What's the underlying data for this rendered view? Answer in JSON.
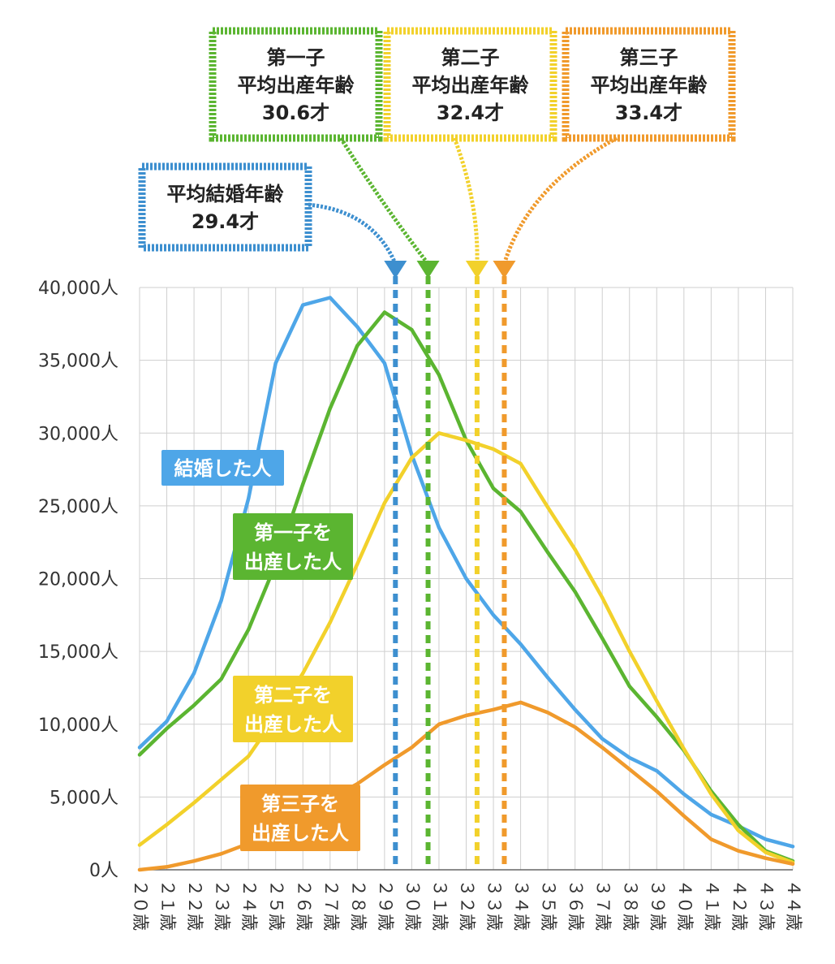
{
  "chart_data": {
    "type": "line",
    "x": [
      20,
      21,
      22,
      23,
      24,
      25,
      26,
      27,
      28,
      29,
      30,
      31,
      32,
      33,
      34,
      35,
      36,
      37,
      38,
      39,
      40,
      41,
      42,
      43,
      44
    ],
    "x_tick_labels": [
      "２０歳",
      "２１歳",
      "２２歳",
      "２３歳",
      "２４歳",
      "２５歳",
      "２６歳",
      "２７歳",
      "２８歳",
      "２９歳",
      "３０歳",
      "３１歳",
      "３２歳",
      "３３歳",
      "３４歳",
      "３５歳",
      "３６歳",
      "３７歳",
      "３８歳",
      "３９歳",
      "４０歳",
      "４１歳",
      "４２歳",
      "４３歳",
      "４４歳"
    ],
    "ylim": [
      0,
      40000
    ],
    "y_ticks": [
      0,
      5000,
      10000,
      15000,
      20000,
      25000,
      30000,
      35000,
      40000
    ],
    "y_tick_labels": [
      "0人",
      "5,000人",
      "10,000人",
      "15,000人",
      "20,000人",
      "25,000人",
      "30,000人",
      "35,000人",
      "40,000人"
    ],
    "grid": true,
    "series": [
      {
        "name": "結婚した人",
        "color": "#4ea6e8",
        "values": [
          8400,
          10200,
          13500,
          18500,
          25500,
          34800,
          38800,
          39300,
          37300,
          34800,
          28500,
          23500,
          20000,
          17500,
          15500,
          13200,
          11000,
          9000,
          7700,
          6800,
          5200,
          3800,
          3000,
          2100,
          1600
        ]
      },
      {
        "name": "第一子を出産した人",
        "color": "#5bb531",
        "values": [
          7900,
          9700,
          11300,
          13100,
          16500,
          21000,
          26500,
          31700,
          36000,
          38300,
          37100,
          34000,
          29500,
          26200,
          24600,
          21800,
          19100,
          15900,
          12600,
          10500,
          8200,
          5400,
          3100,
          1300,
          600
        ]
      },
      {
        "name": "第二子を出産した人",
        "color": "#f2d12b",
        "values": [
          1700,
          3100,
          4600,
          6200,
          7800,
          10500,
          13500,
          17000,
          21000,
          25200,
          28300,
          30000,
          29500,
          28900,
          27900,
          24900,
          22000,
          18700,
          15000,
          11600,
          8300,
          5200,
          2700,
          1200,
          500
        ]
      },
      {
        "name": "第三子を出産した人",
        "color": "#f09a2c",
        "values": [
          0,
          200,
          600,
          1100,
          1800,
          2800,
          3900,
          4900,
          5900,
          7200,
          8400,
          10000,
          10600,
          11000,
          11500,
          10800,
          9800,
          8400,
          6900,
          5400,
          3700,
          2100,
          1300,
          800,
          400
        ]
      }
    ],
    "legend_labels": [
      {
        "series": 0,
        "lines": [
          "結婚した人"
        ]
      },
      {
        "series": 1,
        "lines": [
          "第一子を",
          "出産した人"
        ]
      },
      {
        "series": 2,
        "lines": [
          "第二子を",
          "出産した人"
        ]
      },
      {
        "series": 3,
        "lines": [
          "第三子を",
          "出産した人"
        ]
      }
    ],
    "markers": [
      {
        "x": 29.4,
        "color": "#3d8fcf",
        "lines": [
          "平均結婚年齢",
          "29.4才"
        ]
      },
      {
        "x": 30.6,
        "color": "#5bb531",
        "lines": [
          "第一子",
          "平均出産年齢",
          "30.6才"
        ]
      },
      {
        "x": 32.4,
        "color": "#f2d12b",
        "lines": [
          "第二子",
          "平均出産年齢",
          "32.4才"
        ]
      },
      {
        "x": 33.4,
        "color": "#f09a2c",
        "lines": [
          "第三子",
          "平均出産年齢",
          "33.4才"
        ]
      }
    ]
  }
}
